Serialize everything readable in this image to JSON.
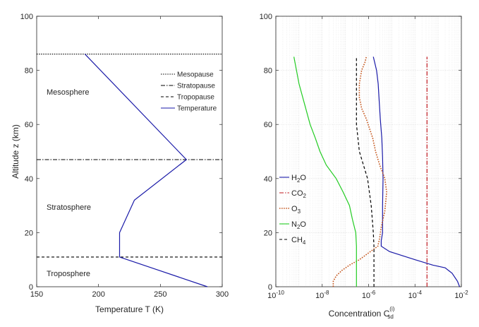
{
  "chart_data": [
    {
      "type": "line",
      "xlabel": "Temperature T (K)",
      "ylabel": "Altitude z (km)",
      "xlim": [
        150,
        300
      ],
      "ylim": [
        0,
        100
      ],
      "xticks": [
        "150",
        "200",
        "250",
        "300"
      ],
      "yticks": [
        "0",
        "20",
        "40",
        "60",
        "80",
        "100"
      ],
      "grid": false,
      "legend_position": "top-right",
      "series": [
        {
          "name": "Mesopause",
          "style": "dotted",
          "color": "#000000",
          "x": [
            150,
            300
          ],
          "y": [
            86,
            86
          ]
        },
        {
          "name": "Stratopause",
          "style": "dashdot",
          "color": "#000000",
          "x": [
            150,
            300
          ],
          "y": [
            47,
            47
          ]
        },
        {
          "name": "Tropopause",
          "style": "dashed",
          "color": "#000000",
          "x": [
            150,
            300
          ],
          "y": [
            11,
            11
          ]
        },
        {
          "name": "Temperature",
          "style": "solid",
          "color": "#1a1aa8",
          "x": [
            288,
            217,
            217,
            229,
            271,
            189
          ],
          "y": [
            0,
            11,
            20,
            32,
            47,
            86
          ]
        }
      ],
      "annotations": [
        {
          "text": "Mesosphere",
          "x": 158,
          "y": 72
        },
        {
          "text": "Stratosphere",
          "x": 158,
          "y": 29.5
        },
        {
          "text": "Troposphere",
          "x": 158,
          "y": 5
        }
      ]
    },
    {
      "type": "line",
      "xlabel_main": "Concentration C",
      "xlabel_sub": "sd",
      "xlabel_sup": "(i)",
      "ylabel": "",
      "xscale": "log",
      "xlim_exp": [
        -10,
        -2
      ],
      "ylim": [
        0,
        100
      ],
      "xticks": [
        {
          "base": "10",
          "exp": "-10"
        },
        {
          "base": "10",
          "exp": "-8"
        },
        {
          "base": "10",
          "exp": "-6"
        },
        {
          "base": "10",
          "exp": "-4"
        },
        {
          "base": "10",
          "exp": "-2"
        }
      ],
      "yticks": [
        "0",
        "20",
        "40",
        "60",
        "80",
        "100"
      ],
      "grid": true,
      "legend_position": "middle-left",
      "series": [
        {
          "name_main": "H",
          "name_sub": "2",
          "name_rest": "O",
          "style": "solid",
          "color": "#1a1aa8",
          "x": [
            0.0084,
            0.0068,
            0.004,
            0.002,
            0.0006,
            0.0001,
            8e-06,
            3.5e-06,
            3.5e-06,
            4e-06,
            4e-06,
            4.2e-06,
            4e-06,
            3.7e-06,
            3.2e-06,
            2.8e-06,
            2.6e-06,
            2.2e-06,
            1.6e-06
          ],
          "y": [
            0,
            2,
            5,
            7,
            8,
            10,
            13,
            15,
            17,
            20,
            30,
            40,
            48,
            55,
            62,
            70,
            75,
            80,
            85
          ]
        },
        {
          "name_main": "CO",
          "name_sub": "2",
          "name_rest": "",
          "style": "dashdot",
          "color": "#c0181f",
          "x": [
            0.00033,
            0.00033
          ],
          "y": [
            0,
            85
          ]
        },
        {
          "name_main": "O",
          "name_sub": "3",
          "name_rest": "",
          "style": "dotted",
          "color": "#c4541a",
          "x": [
            3e-08,
            3e-08,
            4e-08,
            7e-08,
            1.5e-07,
            4e-07,
            1.2e-06,
            2.5e-06,
            3e-06,
            3.5e-06,
            5e-06,
            6e-06,
            5e-06,
            3e-06,
            2e-06,
            1.5e-06,
            8e-07,
            5e-07,
            4e-07,
            4e-07,
            5e-07,
            7e-07,
            8e-07
          ],
          "y": [
            0,
            2,
            4,
            6,
            8,
            10,
            13,
            15,
            18,
            22,
            28,
            35,
            40,
            45,
            50,
            55,
            62,
            66,
            70,
            75,
            80,
            83,
            85
          ]
        },
        {
          "name_main": "N",
          "name_sub": "2",
          "name_rest": "O",
          "style": "solid",
          "color": "#22cc22",
          "x": [
            3e-07,
            3e-07,
            3e-07,
            2.8e-07,
            2e-07,
            1.5e-07,
            8e-08,
            4e-08,
            1.5e-08,
            8e-09,
            5e-09,
            3e-09,
            1e-09,
            6e-10
          ],
          "y": [
            0,
            10,
            15,
            20,
            25,
            30,
            35,
            40,
            45,
            50,
            55,
            60,
            75,
            85
          ]
        },
        {
          "name_main": "CH",
          "name_sub": "4",
          "name_rest": "",
          "style": "dashed",
          "color": "#000000",
          "x": [
            1.7e-06,
            1.7e-06,
            1.6e-06,
            1.3e-06,
            9e-07,
            6e-07,
            4e-07,
            3e-07,
            3e-07
          ],
          "y": [
            0,
            15,
            20,
            30,
            40,
            45,
            50,
            60,
            85
          ]
        }
      ]
    }
  ]
}
